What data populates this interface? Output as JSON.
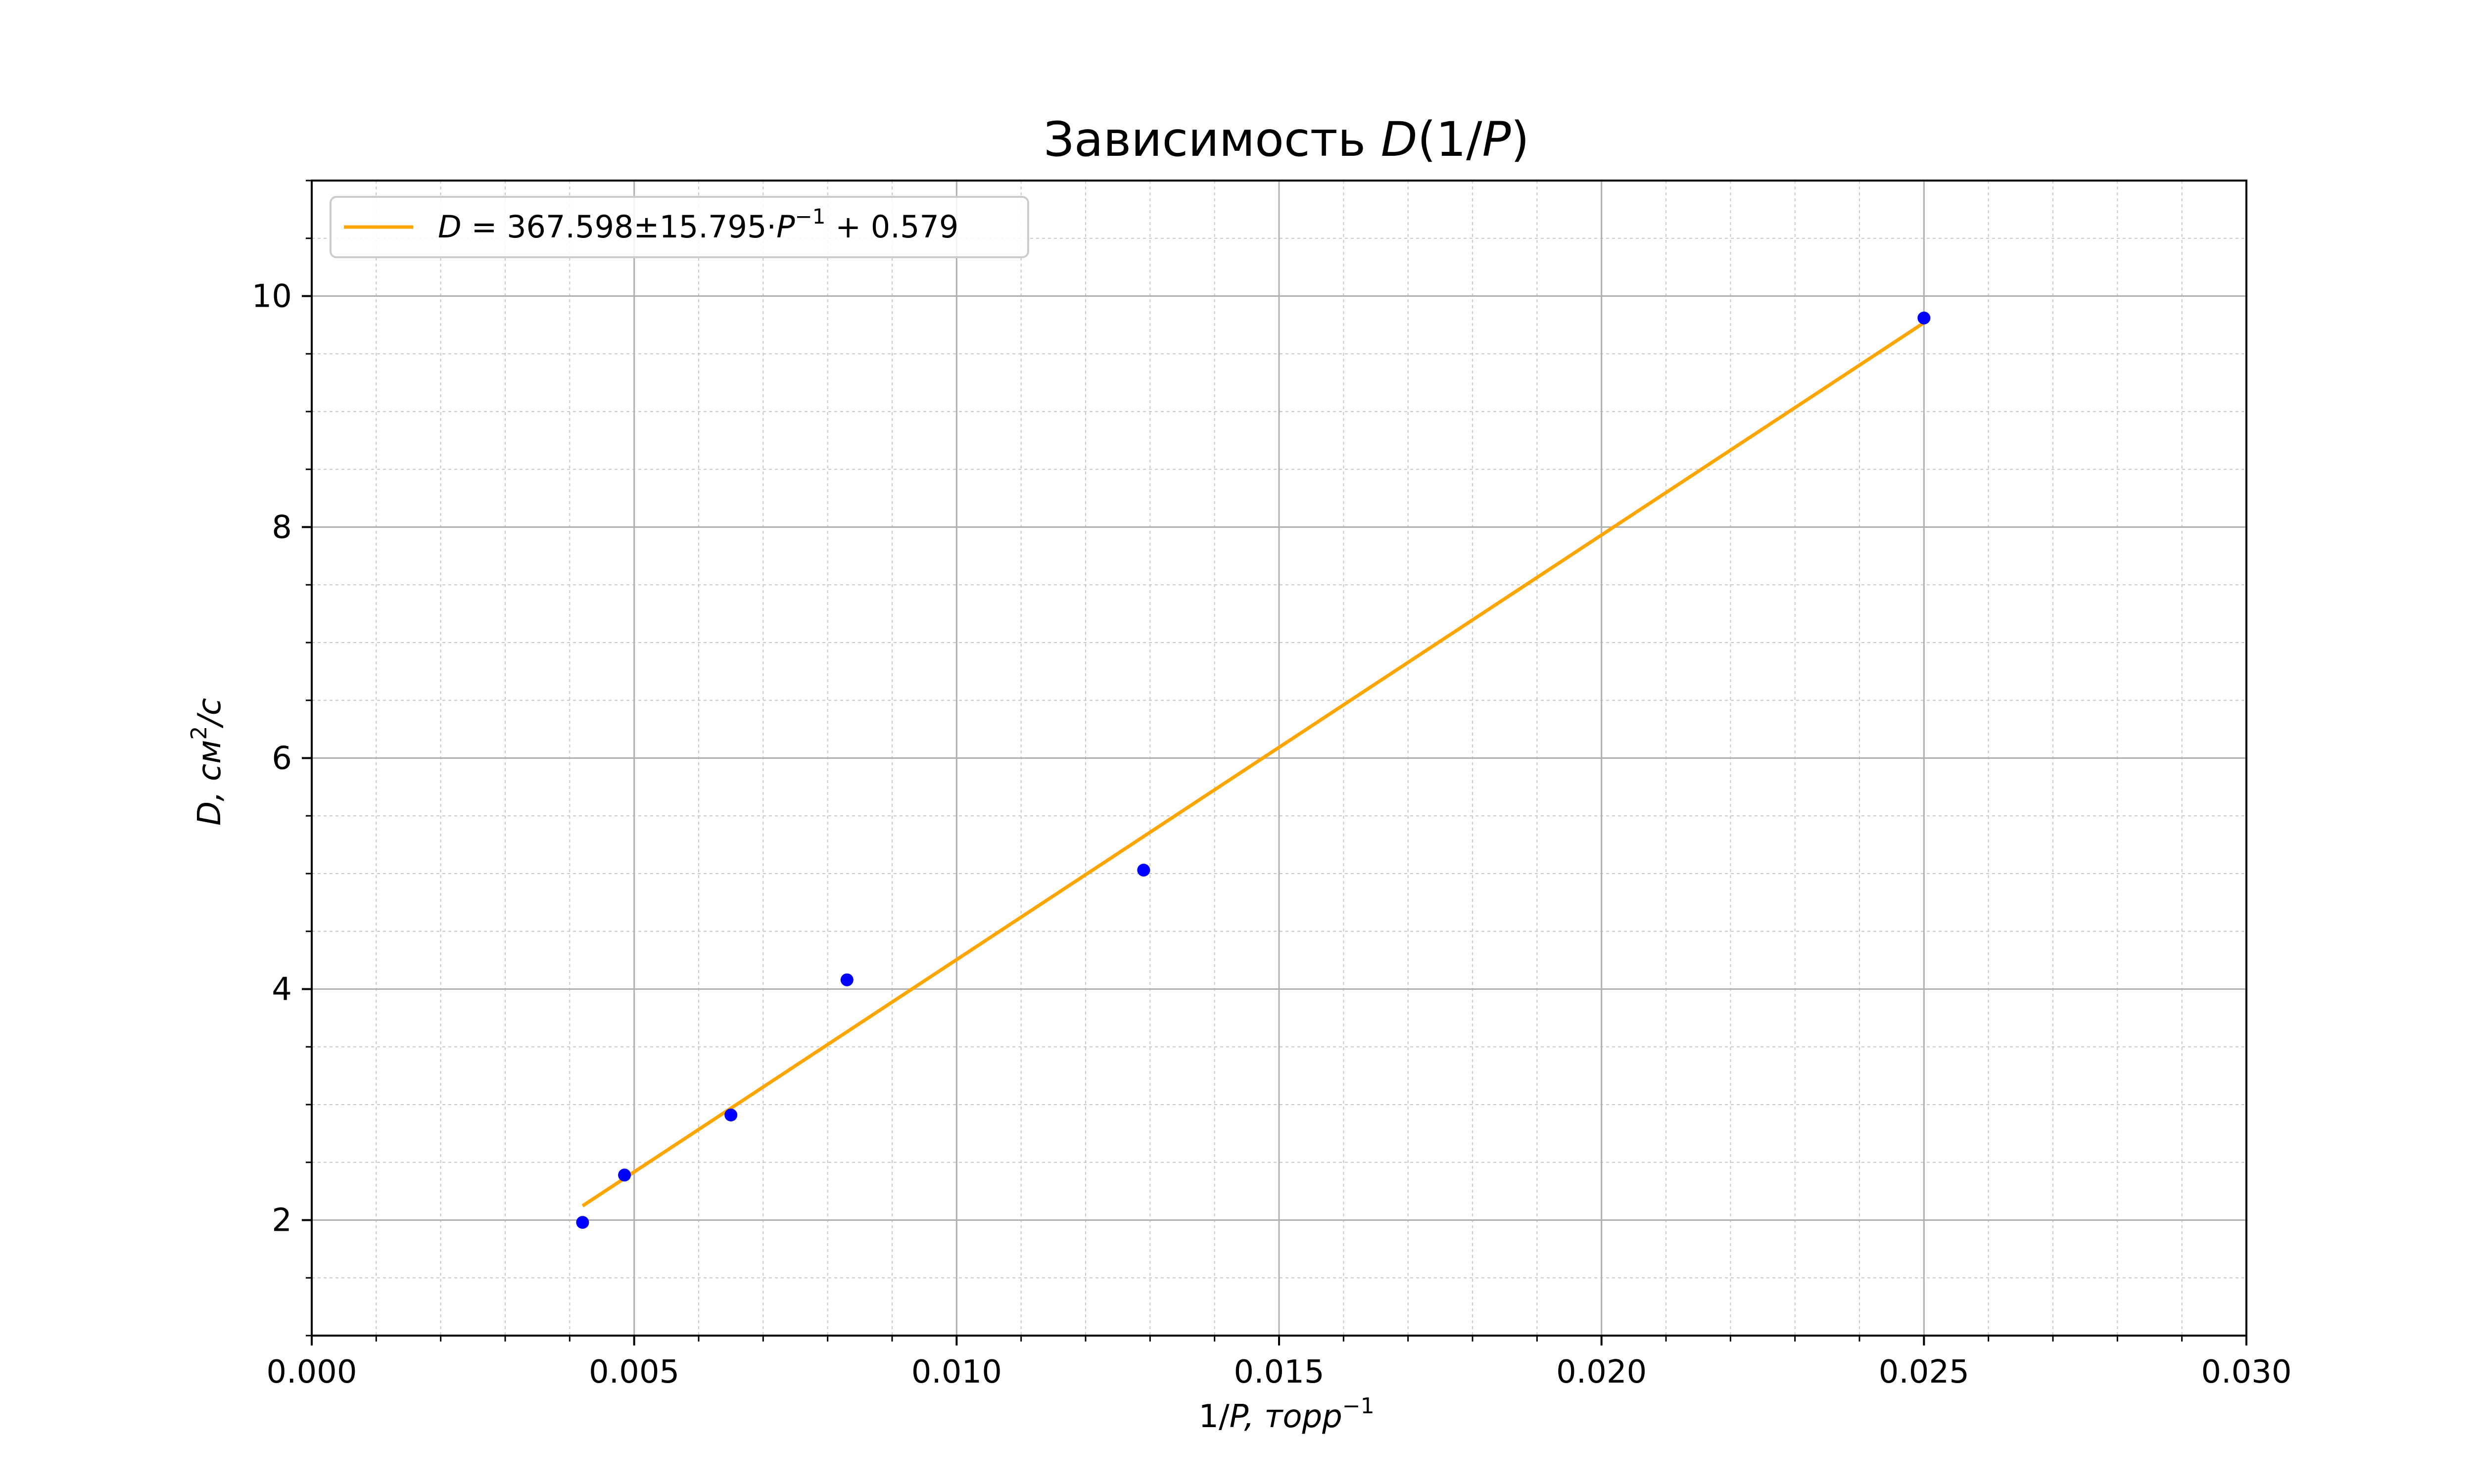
{
  "chart_data": {
    "type": "scatter",
    "title_prefix": "Зависимость ",
    "title_math": "D",
    "title_suffix": "(1/",
    "title_math2": "P",
    "title_end": ")",
    "xlabel_prefix": "1/",
    "xlabel_math": "P",
    "xlabel_suffix": ", торр",
    "xlabel_sup": "−1",
    "ylabel_math": "D",
    "ylabel_suffix": ", см",
    "ylabel_sup": "2",
    "ylabel_end": "/с",
    "xlim": [
      0.0,
      0.03
    ],
    "ylim": [
      1.0,
      11.0
    ],
    "x_ticks": [
      "0.000",
      "0.005",
      "0.010",
      "0.015",
      "0.020",
      "0.025",
      "0.030"
    ],
    "x_tick_values": [
      0.0,
      0.005,
      0.01,
      0.015,
      0.02,
      0.025,
      0.03
    ],
    "y_ticks": [
      "2",
      "4",
      "6",
      "8",
      "10"
    ],
    "y_tick_values": [
      2,
      4,
      6,
      8,
      10
    ],
    "grid": true,
    "minor_grid": true,
    "legend_position": "top-left",
    "legend_label_math": "D",
    "legend_label_mid": " = 367.598±15.795·",
    "legend_label_math2": "P",
    "legend_label_sup": "−1",
    "legend_label_end": " + 0.579",
    "series": [
      {
        "points": [
          {
            "x": 0.0042,
            "y": 1.98
          },
          {
            "x": 0.00485,
            "y": 2.39
          },
          {
            "x": 0.0065,
            "y": 2.91
          },
          {
            "x": 0.0083,
            "y": 4.08
          },
          {
            "x": 0.0129,
            "y": 5.03
          },
          {
            "x": 0.025,
            "y": 9.81
          }
        ],
        "color": "#0000ff"
      },
      {
        "fit_slope": 367.598,
        "fit_intercept": 0.579,
        "x_range": [
          0.0042,
          0.025
        ],
        "color": "#ffa500"
      }
    ]
  }
}
